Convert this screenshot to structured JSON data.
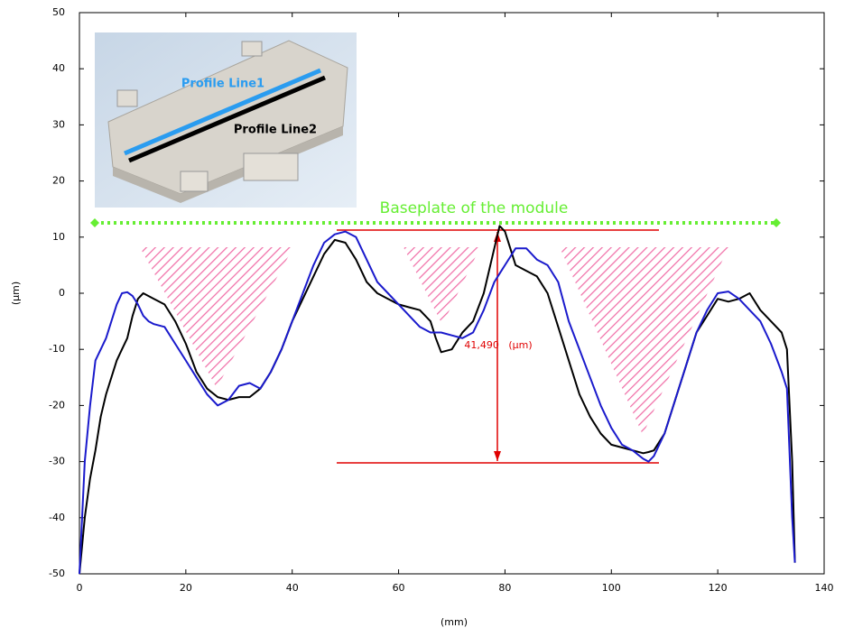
{
  "chart_data": {
    "type": "line",
    "xlabel": "(mm)",
    "ylabel": "(µm)",
    "annotations": [
      "Baseplate of the module",
      "41,490   (µm)"
    ],
    "xlim": [
      0,
      140
    ],
    "xticks": [
      0,
      20,
      40,
      60,
      80,
      100,
      120,
      140
    ],
    "ylim": [
      -50,
      50
    ],
    "yticks": [
      -50,
      -40,
      -30,
      -20,
      -10,
      0,
      10,
      20,
      30,
      40,
      50
    ],
    "x": [
      0,
      1,
      2,
      3,
      4,
      5,
      6,
      7,
      8,
      9,
      10,
      11,
      12,
      13,
      14,
      16,
      18,
      20,
      22,
      24,
      26,
      28,
      30,
      32,
      34,
      36,
      38,
      40,
      42,
      44,
      46,
      48,
      50,
      52,
      54,
      56,
      58,
      60,
      62,
      64,
      66,
      67,
      68,
      70,
      72,
      74,
      76,
      78,
      79,
      80,
      81,
      82,
      84,
      86,
      88,
      90,
      92,
      94,
      96,
      98,
      100,
      102,
      104,
      106,
      107,
      108,
      110,
      112,
      114,
      116,
      118,
      120,
      122,
      124,
      126,
      128,
      130,
      132,
      133,
      134,
      134.5
    ],
    "series": [
      {
        "name": "Profile Line2",
        "color": "#000000",
        "values": [
          -50,
          -40,
          -33,
          -28,
          -22,
          -18,
          -15,
          -12,
          -10,
          -8,
          -4,
          -1,
          0,
          -0.5,
          -1,
          -2,
          -5,
          -9,
          -14,
          -17,
          -18.5,
          -19,
          -18.5,
          -18.5,
          -17,
          -14,
          -10,
          -5,
          -1,
          3,
          7,
          9.5,
          9,
          6,
          2,
          0,
          -1,
          -2,
          -2.5,
          -3,
          -5,
          -8,
          -10.5,
          -10,
          -7,
          -5,
          0,
          8,
          12,
          11,
          8,
          5,
          4,
          3,
          0,
          -6,
          -12,
          -18,
          -22,
          -25,
          -27,
          -27.5,
          -28,
          -28.5,
          -28.3,
          -28,
          -25,
          -19,
          -13,
          -7,
          -4,
          -1,
          -1.5,
          -1,
          0,
          -3,
          -5,
          -7,
          -10,
          -30,
          -48
        ]
      },
      {
        "name": "Profile Line1",
        "color": "#1a1acc",
        "values": [
          -50,
          -30,
          -20,
          -12,
          -10,
          -8,
          -5,
          -2,
          0,
          0.2,
          -0.5,
          -2,
          -4,
          -5,
          -5.5,
          -6,
          -9,
          -12,
          -15,
          -18,
          -20,
          -19,
          -16.5,
          -16,
          -17,
          -14,
          -10,
          -5,
          0,
          5,
          9,
          10.5,
          11,
          10,
          6,
          2,
          0,
          -2,
          -4,
          -6,
          -7,
          -7,
          -7,
          -7.5,
          -8,
          -7,
          -3,
          2,
          3.5,
          5,
          6.5,
          8,
          8,
          6,
          5,
          2,
          -5,
          -10,
          -15,
          -20,
          -24,
          -27,
          -28,
          -29.5,
          -30,
          -29,
          -25,
          -19,
          -13,
          -7,
          -3,
          0,
          0.3,
          -1,
          -3,
          -5,
          -9,
          -14,
          -17,
          -40,
          -48
        ]
      }
    ]
  }
}
